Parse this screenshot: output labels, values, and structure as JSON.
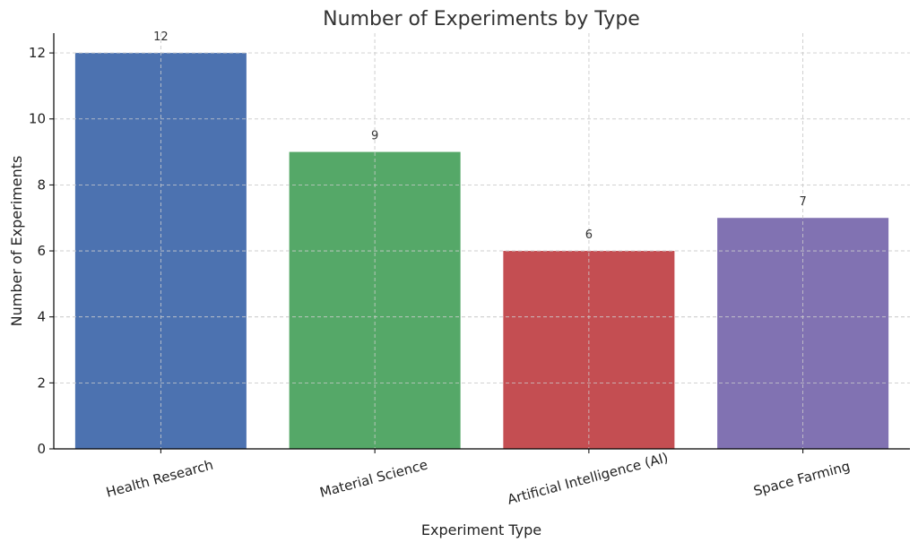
{
  "chart_data": {
    "type": "bar",
    "title": "Number of Experiments by Type",
    "xlabel": "Experiment Type",
    "ylabel": "Number of Experiments",
    "categories": [
      "Health Research",
      "Material Science",
      "Artificial Intelligence (AI)",
      "Space Farming"
    ],
    "values": [
      12,
      9,
      6,
      7
    ],
    "value_labels": [
      "12",
      "9",
      "6",
      "7"
    ],
    "colors": [
      "#4c72b0",
      "#55a868",
      "#c44e52",
      "#8172b2"
    ],
    "ylim": [
      0,
      12.6
    ],
    "yticks": [
      0,
      2,
      4,
      6,
      8,
      10,
      12
    ],
    "ytick_labels": [
      "0",
      "2",
      "4",
      "6",
      "8",
      "10",
      "12"
    ],
    "grid": true,
    "category_label_rotation_deg": 15
  }
}
